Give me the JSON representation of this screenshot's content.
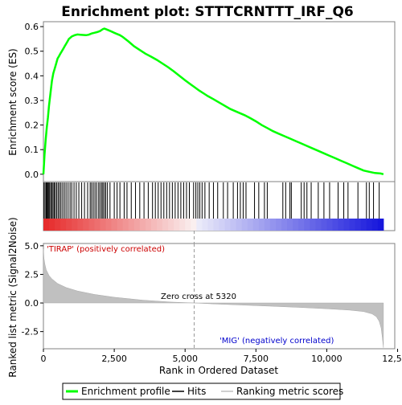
{
  "chart_data": {
    "type": "line",
    "title": "Enrichment plot: STTTCRNTTT_IRF_Q6",
    "top_panel": {
      "ylabel": "Enrichment score (ES)",
      "ylim": [
        -0.03,
        0.62
      ],
      "yticks": [
        "0.0",
        "0.1",
        "0.2",
        "0.3",
        "0.4",
        "0.5",
        "0.6"
      ],
      "ytick_values": [
        0.0,
        0.1,
        0.2,
        0.3,
        0.4,
        0.5,
        0.6
      ],
      "series": {
        "name": "Enrichment profile",
        "color": "#00ff00",
        "x": [
          0,
          40,
          80,
          120,
          160,
          200,
          250,
          300,
          350,
          400,
          450,
          500,
          550,
          600,
          650,
          700,
          750,
          800,
          850,
          900,
          950,
          1000,
          1100,
          1200,
          1300,
          1400,
          1500,
          1600,
          1700,
          1800,
          1900,
          2000,
          2050,
          2100,
          2150,
          2200,
          2300,
          2400,
          2500,
          2600,
          2700,
          2800,
          3000,
          3200,
          3400,
          3600,
          3800,
          4000,
          4200,
          4400,
          4600,
          4800,
          5000,
          5200,
          5320,
          5500,
          5800,
          6000,
          6300,
          6600,
          6900,
          7100,
          7300,
          7500,
          7700,
          7900,
          8100,
          8300,
          8500,
          8700,
          8900,
          9100,
          9300,
          9500,
          9700,
          9900,
          10100,
          10300,
          10500,
          10700,
          10900,
          11100,
          11300,
          11500,
          11700,
          11900,
          12000
        ],
        "y": [
          0.0,
          0.08,
          0.14,
          0.19,
          0.23,
          0.28,
          0.33,
          0.38,
          0.41,
          0.43,
          0.45,
          0.47,
          0.48,
          0.49,
          0.5,
          0.51,
          0.52,
          0.53,
          0.54,
          0.55,
          0.555,
          0.56,
          0.565,
          0.568,
          0.567,
          0.566,
          0.565,
          0.567,
          0.572,
          0.575,
          0.578,
          0.582,
          0.586,
          0.59,
          0.592,
          0.59,
          0.585,
          0.58,
          0.575,
          0.57,
          0.565,
          0.558,
          0.54,
          0.52,
          0.505,
          0.49,
          0.478,
          0.465,
          0.45,
          0.435,
          0.418,
          0.4,
          0.382,
          0.365,
          0.355,
          0.34,
          0.318,
          0.305,
          0.285,
          0.265,
          0.25,
          0.24,
          0.228,
          0.215,
          0.2,
          0.188,
          0.175,
          0.165,
          0.155,
          0.145,
          0.135,
          0.125,
          0.115,
          0.105,
          0.095,
          0.085,
          0.075,
          0.065,
          0.055,
          0.045,
          0.035,
          0.025,
          0.015,
          0.01,
          0.005,
          0.003,
          0.0
        ]
      }
    },
    "hits": {
      "name": "Hits",
      "color": "#000000",
      "positions": [
        20,
        60,
        100,
        130,
        160,
        190,
        220,
        260,
        300,
        340,
        380,
        420,
        470,
        520,
        570,
        620,
        680,
        740,
        800,
        870,
        940,
        1000,
        1080,
        1160,
        1250,
        1350,
        1450,
        1560,
        1650,
        1700,
        1760,
        1820,
        1880,
        1950,
        2000,
        2060,
        2100,
        2150,
        2200,
        2260,
        2350,
        2500,
        2600,
        2700,
        2850,
        2950,
        3100,
        3250,
        3400,
        3550,
        3700,
        3850,
        3950,
        4050,
        4150,
        4250,
        4350,
        4450,
        4550,
        4650,
        4750,
        4850,
        4950,
        5050,
        5150,
        5300,
        5380,
        5450,
        5520,
        5600,
        5700,
        5850,
        6000,
        6150,
        6350,
        6500,
        6700,
        6850,
        6950,
        7050,
        7150,
        7450,
        7600,
        7800,
        7900,
        8450,
        8550,
        8700,
        8750,
        9100,
        9200,
        9300,
        9450,
        9700,
        9900,
        10100,
        10400,
        10600,
        10750,
        11100,
        11400,
        11500,
        11650,
        11850
      ]
    },
    "ranking": {
      "name": "Ranking metric scores",
      "color": "#c0c0c0",
      "ylabel": "Ranked list metric (Signal2Noise)",
      "ylim": [
        -4.0,
        5.2
      ],
      "yticks": [
        "5.0",
        "2.5",
        "0.0",
        "-2.5"
      ],
      "ytick_values": [
        5.0,
        2.5,
        0.0,
        -2.5
      ],
      "x": [
        0,
        20,
        50,
        100,
        200,
        300,
        500,
        800,
        1200,
        1800,
        2500,
        3500,
        4500,
        5320,
        6000,
        7000,
        8000,
        9000,
        10000,
        10800,
        11300,
        11600,
        11750,
        11850,
        11920,
        11960,
        12000
      ],
      "y": [
        4.7,
        3.9,
        3.4,
        2.9,
        2.4,
        2.1,
        1.7,
        1.35,
        1.05,
        0.75,
        0.5,
        0.25,
        0.08,
        0.0,
        -0.08,
        -0.18,
        -0.28,
        -0.38,
        -0.5,
        -0.62,
        -0.75,
        -0.95,
        -1.2,
        -1.6,
        -2.2,
        -3.0,
        -3.9
      ],
      "zero_cross_label": "Zero cross at 5320",
      "zero_cross": 5320,
      "positive_label": "'TIRAP' (positively correlated)",
      "positive_color": "#cc0000",
      "negative_label": "'MIG' (negatively correlated)",
      "negative_color": "#0000cc"
    },
    "xaxis": {
      "xlabel": "Rank in Ordered Dataset",
      "xlim": [
        0,
        12400
      ],
      "xticks": [
        "0",
        "2,500",
        "5,000",
        "7,500",
        "10,000",
        "12,500"
      ],
      "xtick_values": [
        0,
        2500,
        5000,
        7500,
        10000,
        12500
      ],
      "n_genes": 12000
    },
    "legend": {
      "placement": "bottom",
      "entries": [
        "Enrichment profile",
        "Hits",
        "Ranking metric scores"
      ]
    }
  }
}
